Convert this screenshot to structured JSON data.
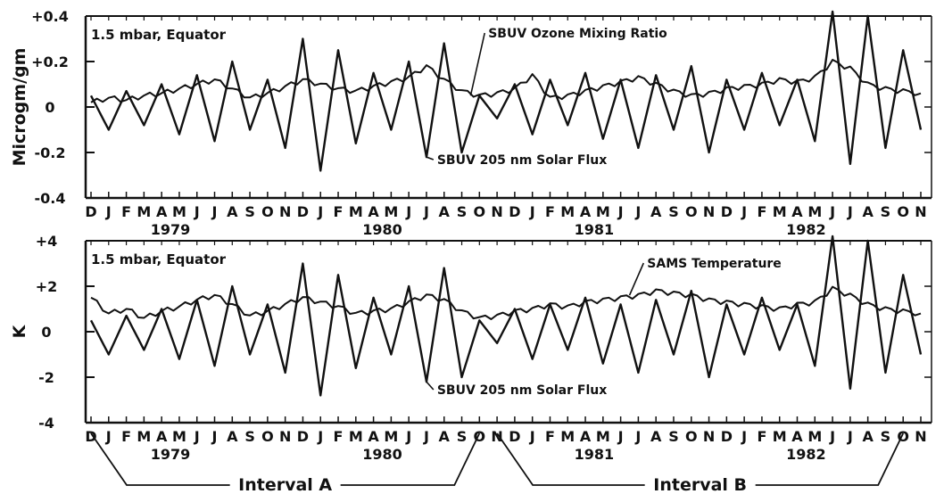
{
  "months": [
    "D",
    "J",
    "F",
    "M",
    "A",
    "M",
    "J",
    "J",
    "A",
    "S",
    "O",
    "N",
    "D",
    "J",
    "F",
    "M",
    "A",
    "M",
    "J",
    "J",
    "A",
    "S",
    "O",
    "N",
    "D",
    "J",
    "F",
    "M",
    "A",
    "M",
    "J",
    "J",
    "A",
    "S",
    "O",
    "N",
    "D",
    "J",
    "F",
    "M",
    "A",
    "M",
    "J",
    "J",
    "A",
    "S",
    "O",
    "N"
  ],
  "years": [
    {
      "label": "1979",
      "month_index": 4.5
    },
    {
      "label": "1980",
      "month_index": 16.5
    },
    {
      "label": "1981",
      "month_index": 28.5
    },
    {
      "label": "1982",
      "month_index": 40.5
    }
  ],
  "intervals": [
    {
      "label": "Interval A",
      "start_month": 0,
      "end_month": 22
    },
    {
      "label": "Interval B",
      "start_month": 23,
      "end_month": 46
    }
  ],
  "colors": {
    "ink": "#111111",
    "background": "#ffffff"
  },
  "chart_data": [
    {
      "type": "line",
      "panel": "top",
      "panel_label": "1.5 mbar, Equator",
      "ylabel": "Microgm/gm",
      "ylim": [
        -0.4,
        0.4
      ],
      "yticks": [
        {
          "value": 0.4,
          "label": "+0.4"
        },
        {
          "value": 0.2,
          "label": "+0.2"
        },
        {
          "value": 0,
          "label": "0"
        },
        {
          "value": -0.2,
          "label": "-0.2"
        },
        {
          "value": -0.4,
          "label": "-0.4"
        }
      ],
      "series": [
        {
          "name": "SBUV Ozone Mixing Ratio",
          "values": [
            0.02,
            0.04,
            0.03,
            0.05,
            0.06,
            0.08,
            0.1,
            0.12,
            0.08,
            0.04,
            0.06,
            0.09,
            0.12,
            0.1,
            0.08,
            0.07,
            0.09,
            0.11,
            0.13,
            0.18,
            0.12,
            0.07,
            0.05,
            0.06,
            0.08,
            0.14,
            0.04,
            0.05,
            0.07,
            0.09,
            0.11,
            0.13,
            0.1,
            0.07,
            0.05,
            0.06,
            0.08,
            0.09,
            0.1,
            0.12,
            0.11,
            0.13,
            0.2,
            0.17,
            0.1,
            0.08,
            0.07,
            0.06
          ]
        },
        {
          "name": "SBUV 205 nm Solar Flux",
          "values": [
            0.05,
            -0.1,
            0.07,
            -0.08,
            0.1,
            -0.12,
            0.14,
            -0.15,
            0.2,
            -0.1,
            0.12,
            -0.18,
            0.3,
            -0.28,
            0.25,
            -0.16,
            0.15,
            -0.1,
            0.2,
            -0.22,
            0.28,
            -0.2,
            0.05,
            -0.05,
            0.1,
            -0.12,
            0.12,
            -0.08,
            0.15,
            -0.14,
            0.12,
            -0.18,
            0.14,
            -0.1,
            0.18,
            -0.2,
            0.12,
            -0.1,
            0.15,
            -0.08,
            0.12,
            -0.15,
            0.42,
            -0.25,
            0.4,
            -0.18,
            0.25,
            -0.1
          ]
        }
      ],
      "annotations": [
        {
          "text": "SBUV Ozone Mixing Ratio",
          "target_month": 21.5
        },
        {
          "text": "SBUV 205 nm Solar Flux",
          "target_month": 19.0
        }
      ]
    },
    {
      "type": "line",
      "panel": "bottom",
      "panel_label": "1.5 mbar, Equator",
      "ylabel": "K",
      "ylim": [
        -4,
        4
      ],
      "yticks": [
        {
          "value": 4,
          "label": "+4"
        },
        {
          "value": 2,
          "label": "+2"
        },
        {
          "value": 0,
          "label": "0"
        },
        {
          "value": -2,
          "label": "-2"
        },
        {
          "value": -4,
          "label": "-4"
        }
      ],
      "series": [
        {
          "name": "SAMS Temperature",
          "values": [
            1.5,
            0.8,
            1.0,
            0.6,
            0.9,
            1.1,
            1.4,
            1.6,
            1.2,
            0.7,
            0.9,
            1.2,
            1.5,
            1.3,
            1.1,
            0.8,
            0.9,
            1.0,
            1.3,
            1.6,
            1.4,
            0.9,
            0.6,
            0.7,
            0.9,
            1.0,
            1.2,
            1.1,
            1.3,
            1.4,
            1.5,
            1.6,
            1.8,
            1.7,
            1.6,
            1.4,
            1.3,
            1.2,
            1.1,
            1.0,
            1.2,
            1.3,
            1.9,
            1.6,
            1.2,
            1.0,
            0.9,
            0.8
          ]
        },
        {
          "name": "SBUV 205 nm Solar Flux",
          "values": [
            0.5,
            -1.0,
            0.7,
            -0.8,
            1.0,
            -1.2,
            1.4,
            -1.5,
            2.0,
            -1.0,
            1.2,
            -1.8,
            3.0,
            -2.8,
            2.5,
            -1.6,
            1.5,
            -1.0,
            2.0,
            -2.2,
            2.8,
            -2.0,
            0.5,
            -0.5,
            1.0,
            -1.2,
            1.2,
            -0.8,
            1.5,
            -1.4,
            1.2,
            -1.8,
            1.4,
            -1.0,
            1.8,
            -2.0,
            1.2,
            -1.0,
            1.5,
            -0.8,
            1.2,
            -1.5,
            4.2,
            -2.5,
            4.0,
            -1.8,
            2.5,
            -1.0
          ]
        }
      ],
      "annotations": [
        {
          "text": "SAMS Temperature",
          "target_month": 30.5
        },
        {
          "text": "SBUV 205 nm Solar Flux",
          "target_month": 19.0
        }
      ]
    }
  ]
}
